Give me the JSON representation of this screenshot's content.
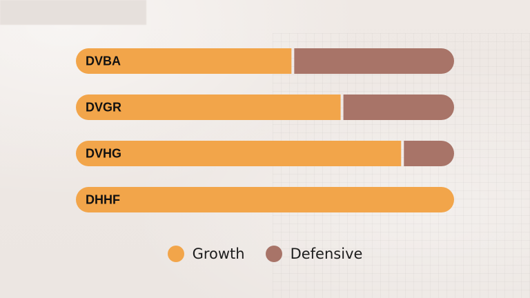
{
  "colors": {
    "growth": "#f2a54a",
    "defensive": "#a87468",
    "background": "#eee8e4"
  },
  "legend": {
    "items": [
      {
        "label": "Growth",
        "color": "#f2a54a"
      },
      {
        "label": "Defensive",
        "color": "#a87468"
      }
    ]
  },
  "chart_data": {
    "type": "bar",
    "orientation": "horizontal",
    "stacked": true,
    "categories": [
      "DVBA",
      "DVGR",
      "DVHG",
      "DHHF"
    ],
    "series": [
      {
        "name": "Growth",
        "values": [
          57,
          70,
          86,
          100
        ]
      },
      {
        "name": "Defensive",
        "values": [
          43,
          30,
          14,
          0
        ]
      }
    ],
    "xlim": [
      0,
      100
    ],
    "title": "",
    "xlabel": "",
    "ylabel": "",
    "grid": false,
    "legend_position": "bottom-center"
  }
}
